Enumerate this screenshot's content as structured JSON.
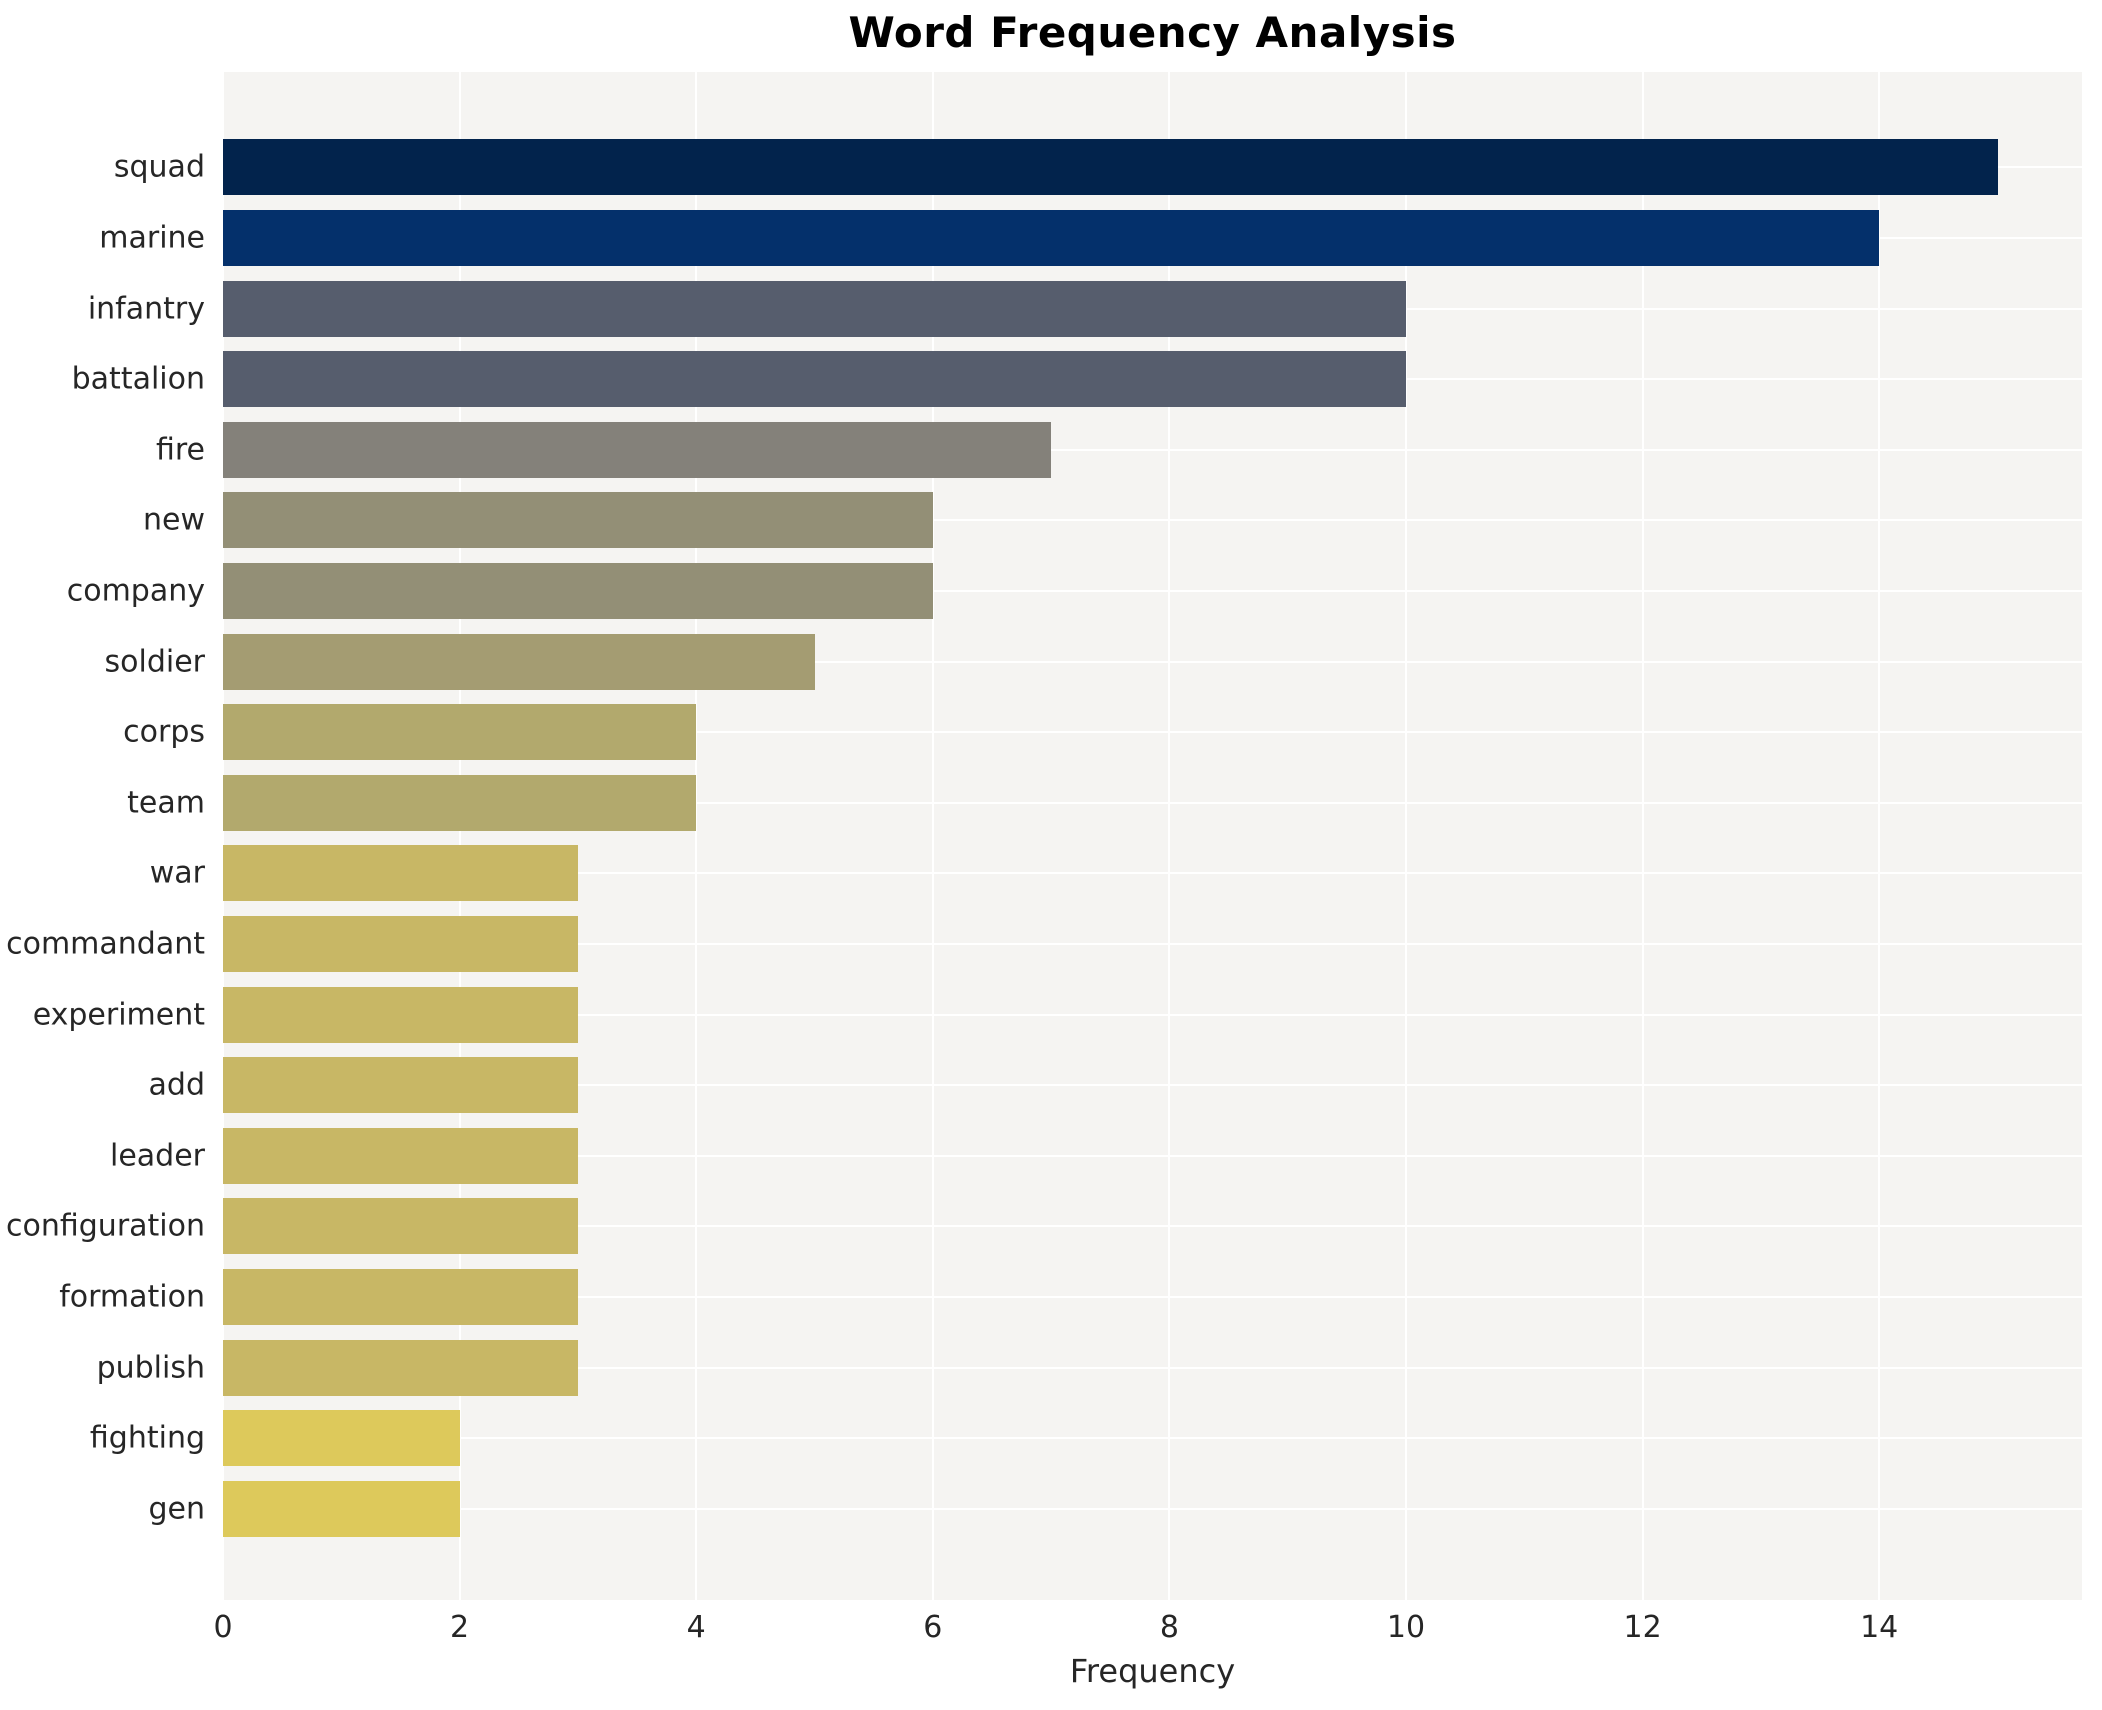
{
  "chart_data": {
    "type": "bar",
    "orientation": "horizontal",
    "title": "Word Frequency Analysis",
    "xlabel": "Frequency",
    "ylabel": "",
    "categories": [
      "squad",
      "marine",
      "infantry",
      "battalion",
      "fire",
      "new",
      "company",
      "soldier",
      "corps",
      "team",
      "war",
      "commandant",
      "experiment",
      "add",
      "leader",
      "configuration",
      "formation",
      "publish",
      "fighting",
      "gen"
    ],
    "values": [
      15,
      14,
      10,
      10,
      7,
      6,
      6,
      5,
      4,
      4,
      3,
      3,
      3,
      3,
      3,
      3,
      3,
      3,
      2,
      2
    ],
    "bar_colors": [
      "#02234c",
      "#04306b",
      "#565d6d",
      "#565d6d",
      "#84817a",
      "#938f76",
      "#938f76",
      "#a49c72",
      "#b2a96d",
      "#b2a96d",
      "#c8b765",
      "#c8b765",
      "#c8b765",
      "#c8b765",
      "#c8b765",
      "#c8b765",
      "#c8b765",
      "#c8b765",
      "#ddc95b",
      "#ddc95b"
    ],
    "xticks": [
      0,
      2,
      4,
      6,
      8,
      10,
      12,
      14
    ],
    "xlim": [
      0,
      15.71
    ],
    "grid": true,
    "legend": "none",
    "plot_background": "#f5f4f2",
    "gridline_color": "#ffffff",
    "text_color": "#262626",
    "title_color": "#000000"
  }
}
